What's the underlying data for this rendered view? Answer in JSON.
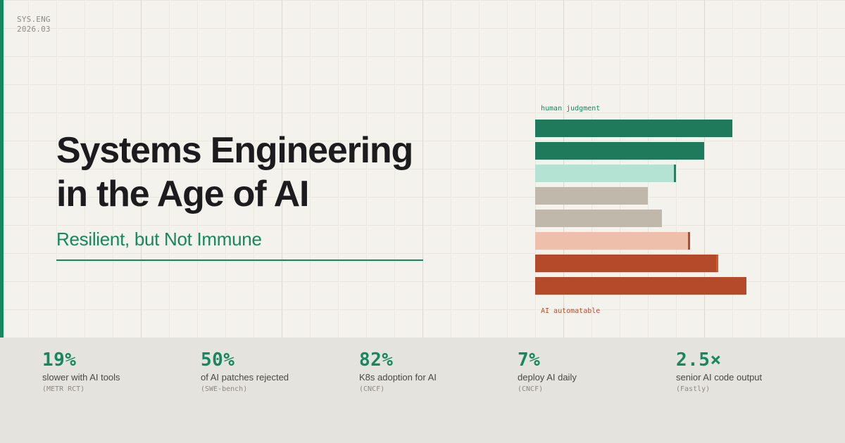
{
  "corner": {
    "line1": "SYS.ENG",
    "line2": "2026.03"
  },
  "title": {
    "line1": "Systems Engineering",
    "line2": "in the Age of AI"
  },
  "subtitle": "Resilient, but Not Immune",
  "chart_data": {
    "type": "bar",
    "orientation": "horizontal",
    "top_label": "human judgment",
    "bottom_label": "AI automatable",
    "bars": [
      {
        "value": 280,
        "color": "#1e7a5b",
        "tick_color": ""
      },
      {
        "value": 240,
        "color": "#1e7a5b",
        "tick_color": ""
      },
      {
        "value": 200,
        "color": "#b4e3d3",
        "tick_color": "#16875f"
      },
      {
        "value": 160,
        "color": "#c0b8ab",
        "tick_color": ""
      },
      {
        "value": 180,
        "color": "#c0b8ab",
        "tick_color": ""
      },
      {
        "value": 220,
        "color": "#eebfaa",
        "tick_color": "#b54a2b"
      },
      {
        "value": 260,
        "color": "#b54a2b",
        "tick_color": "#d4582e"
      },
      {
        "value": 300,
        "color": "#b54a2b",
        "tick_color": ""
      }
    ]
  },
  "stats": [
    {
      "value": "19%",
      "label": "slower with AI tools",
      "source": "(METR RCT)"
    },
    {
      "value": "50%",
      "label": "of AI patches rejected",
      "source": "(SWE-bench)"
    },
    {
      "value": "82%",
      "label": "K8s adoption for AI",
      "source": "(CNCF)"
    },
    {
      "value": "7%",
      "label": "deploy AI daily",
      "source": "(CNCF)"
    },
    {
      "value": "2.5×",
      "label": "senior AI code output",
      "source": "(Fastly)"
    }
  ],
  "colors": {
    "accent": "#16875f",
    "warm": "#b54a2b",
    "background": "#f4f2ed",
    "footer": "#e5e3dd"
  }
}
